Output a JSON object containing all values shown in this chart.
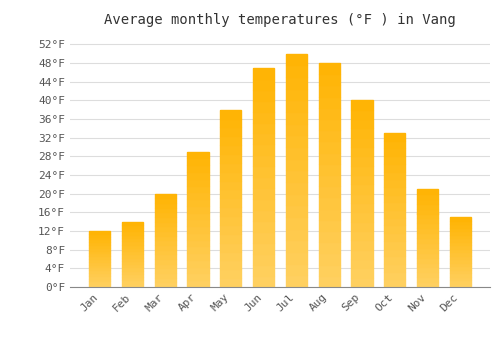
{
  "title": "Average monthly temperatures (°F ) in Vang",
  "months": [
    "Jan",
    "Feb",
    "Mar",
    "Apr",
    "May",
    "Jun",
    "Jul",
    "Aug",
    "Sep",
    "Oct",
    "Nov",
    "Dec"
  ],
  "values": [
    12,
    14,
    20,
    29,
    38,
    47,
    50,
    48,
    40,
    33,
    21,
    15
  ],
  "bar_color_top": "#FFB300",
  "bar_color_bottom": "#FFC94A",
  "bar_edge_color": "none",
  "background_color": "#FFFFFF",
  "grid_color": "#DDDDDD",
  "ylim": [
    0,
    54
  ],
  "yticks": [
    0,
    4,
    8,
    12,
    16,
    20,
    24,
    28,
    32,
    36,
    40,
    44,
    48,
    52
  ],
  "title_fontsize": 10,
  "tick_fontsize": 8,
  "ylabel_suffix": "°F"
}
